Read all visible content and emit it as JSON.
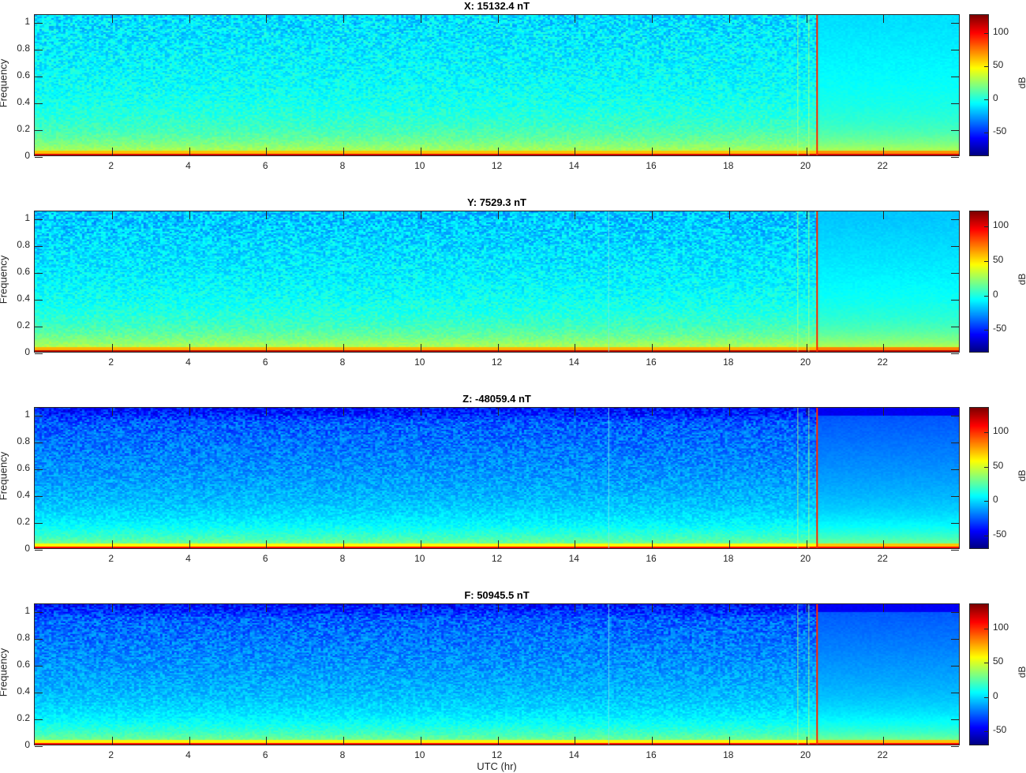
{
  "chart_data": [
    {
      "type": "heatmap",
      "title": "X: 15132.4 nT",
      "ylabel": "Frequency",
      "xlabel": "",
      "xlim": [
        0,
        24
      ],
      "ylim": [
        0,
        1.06
      ],
      "xticks": [
        2,
        4,
        6,
        8,
        10,
        12,
        14,
        16,
        18,
        20,
        22
      ],
      "yticks": [
        0,
        0.2,
        0.4,
        0.6,
        0.8,
        1
      ],
      "ytick_labels": [
        "0",
        "0.2",
        "0.4",
        "0.6",
        "0.8",
        "1"
      ],
      "colorbar": {
        "label": "dB",
        "clim": [
          -87,
          127
        ],
        "ticks": [
          -50,
          0,
          50,
          100
        ],
        "colormap": "jet"
      },
      "vertical_features_hr": [
        19.8,
        20.1,
        20.3
      ],
      "top_level_db": -15
    },
    {
      "type": "heatmap",
      "title": "Y: 7529.3 nT",
      "ylabel": "Frequency",
      "xlabel": "",
      "xlim": [
        0,
        24
      ],
      "ylim": [
        0,
        1.06
      ],
      "xticks": [
        2,
        4,
        6,
        8,
        10,
        12,
        14,
        16,
        18,
        20,
        22
      ],
      "yticks": [
        0,
        0.2,
        0.4,
        0.6,
        0.8,
        1
      ],
      "ytick_labels": [
        "0",
        "0.2",
        "0.4",
        "0.6",
        "0.8",
        "1"
      ],
      "colorbar": {
        "label": "dB",
        "clim": [
          -84,
          122
        ],
        "ticks": [
          -50,
          0,
          50,
          100
        ],
        "colormap": "jet"
      },
      "vertical_features_hr": [
        14.9,
        19.8,
        20.1,
        20.3
      ],
      "top_level_db": -20
    },
    {
      "type": "heatmap",
      "title": "Z: -48059.4 nT",
      "ylabel": "Frequency",
      "xlabel": "",
      "xlim": [
        0,
        24
      ],
      "ylim": [
        0,
        1.06
      ],
      "xticks": [
        2,
        4,
        6,
        8,
        10,
        12,
        14,
        16,
        18,
        20,
        22
      ],
      "yticks": [
        0,
        0.2,
        0.4,
        0.6,
        0.8,
        1
      ],
      "ytick_labels": [
        "0",
        "0.2",
        "0.4",
        "0.6",
        "0.8",
        "1"
      ],
      "colorbar": {
        "label": "dB",
        "clim": [
          -71,
          136
        ],
        "ticks": [
          -50,
          0,
          50,
          100
        ],
        "colormap": "jet"
      },
      "vertical_features_hr": [
        14.9,
        19.8,
        20.1,
        20.3
      ],
      "top_level_db": -30
    },
    {
      "type": "heatmap",
      "title": "F: 50945.5 nT",
      "ylabel": "Frequency",
      "xlabel": "UTC (hr)",
      "xlim": [
        0,
        24
      ],
      "ylim": [
        0,
        1.06
      ],
      "xticks": [
        2,
        4,
        6,
        8,
        10,
        12,
        14,
        16,
        18,
        20,
        22
      ],
      "yticks": [
        0,
        0.2,
        0.4,
        0.6,
        0.8,
        1
      ],
      "ytick_labels": [
        "0",
        "0.2",
        "0.4",
        "0.6",
        "0.8",
        "1"
      ],
      "colorbar": {
        "label": "dB",
        "clim": [
          -72,
          136
        ],
        "ticks": [
          -50,
          0,
          50,
          100
        ],
        "colormap": "jet"
      },
      "vertical_features_hr": [
        14.9,
        19.8,
        20.1,
        20.3
      ],
      "top_level_db": -30
    }
  ]
}
